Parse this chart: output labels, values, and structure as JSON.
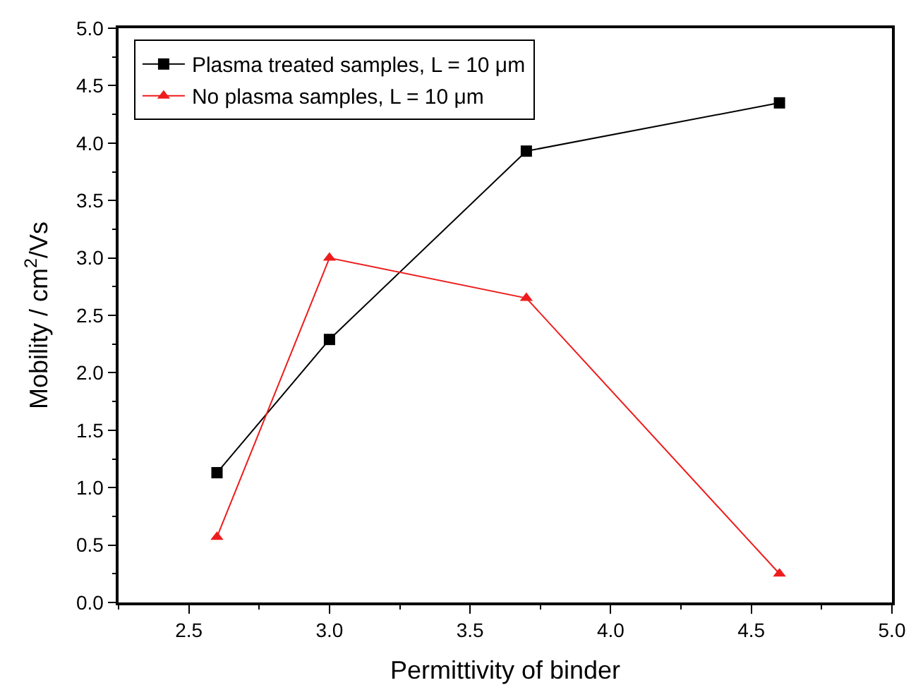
{
  "chart_data": {
    "type": "line",
    "xlabel": "Permittivity of binder",
    "ylabel": "Mobility / cm$^{2}$/Vs",
    "x": [
      2.6,
      3.0,
      3.7,
      4.6
    ],
    "series": [
      {
        "name": "Plasma treated samples, L = 10 μm",
        "color": "#000000",
        "marker": "square",
        "values": [
          1.13,
          2.29,
          3.93,
          4.35
        ]
      },
      {
        "name": "No plasma samples, L = 10 μm",
        "color": "#ee1c1c",
        "marker": "triangle",
        "values": [
          0.57,
          3.0,
          2.65,
          0.25
        ]
      }
    ],
    "xlim": [
      2.25,
      5.0
    ],
    "xticks": [
      2.5,
      {
        "value": 3,
        "label": "3.0"
      },
      3.5,
      {
        "value": 4,
        "label": "4.0"
      },
      4.5,
      {
        "value": 5,
        "label": "5.0"
      }
    ],
    "ylim": [
      0,
      5.0
    ],
    "yticks": [
      {
        "value": 0,
        "label": "0.0"
      },
      0.5,
      {
        "value": 1,
        "label": "1.0"
      },
      1.5,
      {
        "value": 2,
        "label": "2.0"
      },
      2.5,
      {
        "value": 3,
        "label": "3.0"
      },
      3.5,
      {
        "value": 4,
        "label": "4.0"
      },
      4.5,
      {
        "value": 5,
        "label": "5.0"
      }
    ],
    "legend": "top left",
    "line_style": "solid"
  }
}
